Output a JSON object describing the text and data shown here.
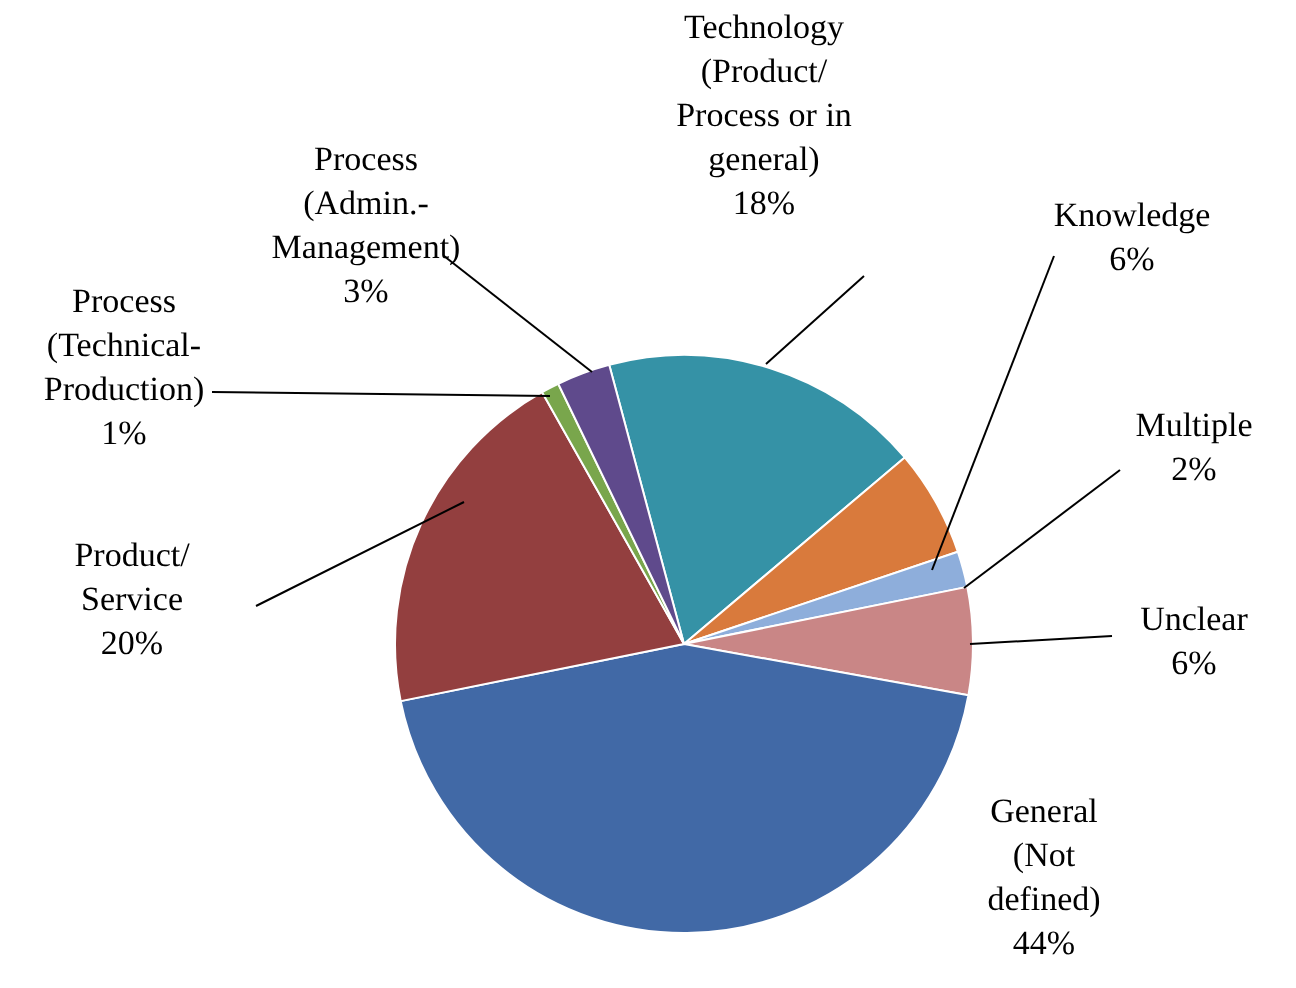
{
  "chart_data": {
    "type": "pie",
    "categories": [
      "Technology\n(Product/\nProcess or in\ngeneral)",
      "Knowledge",
      "Multiple",
      "Unclear",
      "General\n(Not\ndefined)",
      "Product/\nService",
      "Process\n(Technical-\nProduction)",
      "Process\n(Admin.-\nManagement)"
    ],
    "values": [
      18,
      6,
      2,
      6,
      44,
      20,
      1,
      3
    ],
    "value_labels": [
      "18%",
      "6%",
      "2%",
      "6%",
      "44%",
      "20%",
      "1%",
      "3%"
    ],
    "colors": [
      "#3592a6",
      "#d97a3c",
      "#8eaedb",
      "#c98686",
      "#4169a6",
      "#933f3f",
      "#79a64c",
      "#5f4a8c"
    ],
    "legend": false
  }
}
